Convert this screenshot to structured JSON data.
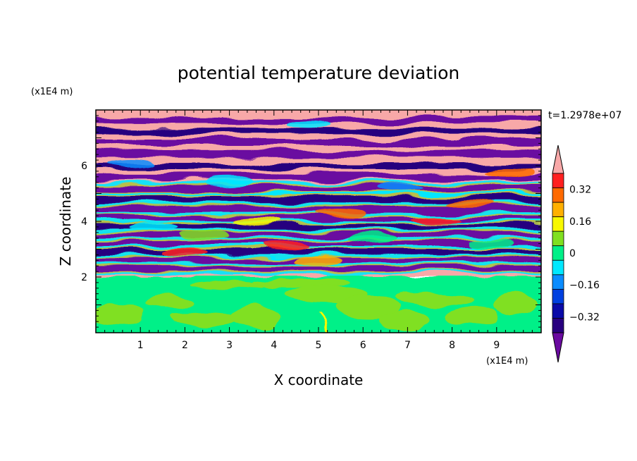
{
  "chart_data": {
    "type": "heatmap",
    "title": "potential temperature deviation",
    "xlabel": "X coordinate",
    "ylabel": "Z coordinate",
    "x_unit": "(x1E4 m)",
    "y_unit": "(x1E4 m)",
    "time_label": "t=1.2978e+07",
    "xlim": [
      0,
      10
    ],
    "ylim": [
      0,
      8
    ],
    "x_ticks": [
      "1",
      "2",
      "3",
      "4",
      "5",
      "6",
      "7",
      "8",
      "9"
    ],
    "x_tick_values": [
      1,
      2,
      3,
      4,
      5,
      6,
      7,
      8,
      9
    ],
    "y_ticks": [
      "2",
      "4",
      "6"
    ],
    "y_tick_values": [
      2,
      4,
      6
    ],
    "colorbar": {
      "levels": [
        -0.48,
        -0.4,
        -0.32,
        -0.24,
        -0.16,
        -0.08,
        0,
        0.08,
        0.16,
        0.24,
        0.32,
        0.4,
        0.48
      ],
      "colors": [
        "#6a0aa0",
        "#28007f",
        "#0a0aa8",
        "#0040e0",
        "#0a8cff",
        "#00e8ff",
        "#00f088",
        "#80e020",
        "#f8f800",
        "#ffb000",
        "#ff6a00",
        "#ff2020",
        "#f8a8a8"
      ],
      "labels": [
        "0.32",
        "0.16",
        "0",
        "−0.16",
        "−0.32"
      ],
      "label_values": [
        0.32,
        0.16,
        0,
        -0.16,
        -0.32
      ],
      "extend": "both"
    },
    "regions": [
      {
        "z_range": [
          0,
          2
        ],
        "description_value": 0
      },
      {
        "z_range": [
          2,
          8
        ],
        "description_value": "layered +/-0.48"
      }
    ]
  }
}
